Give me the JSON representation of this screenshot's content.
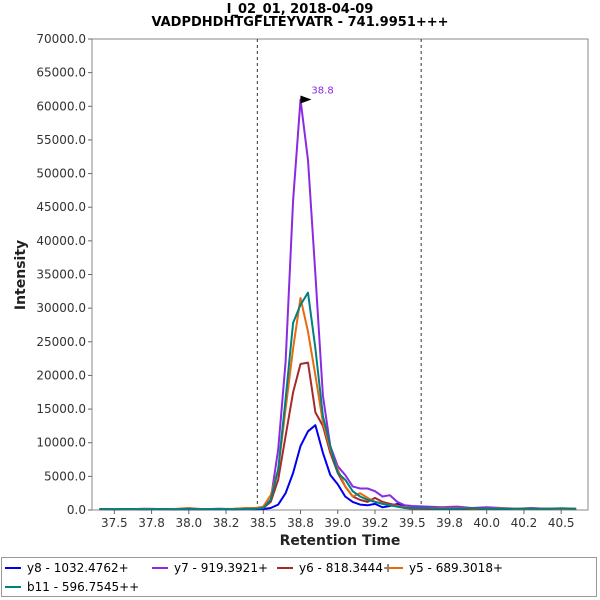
{
  "chart_data": {
    "type": "line",
    "title": "I_02_01, 2018-04-09",
    "subtitle": "VADPDHDHTGFLTEYVATR - 741.9951+++",
    "xlabel": "Retention Time",
    "ylabel": "Intensity",
    "xlim": [
      37.35,
      40.68
    ],
    "ylim": [
      0,
      70000
    ],
    "xticks": [
      "37.5",
      "37.8",
      "38.0",
      "38.2",
      "38.5",
      "38.8",
      "39.0",
      "39.2",
      "39.5",
      "39.8",
      "40.0",
      "40.2",
      "40.5"
    ],
    "xtick_values": [
      37.5,
      37.75,
      38.0,
      38.25,
      38.5,
      38.75,
      39.0,
      39.25,
      39.5,
      39.75,
      40.0,
      40.25,
      40.5
    ],
    "yticks": [
      "0.0",
      "5000.0",
      "10000.0",
      "15000.0",
      "20000.0",
      "25000.0",
      "30000.0",
      "35000.0",
      "40000.0",
      "45000.0",
      "50000.0",
      "55000.0",
      "60000.0",
      "65000.0",
      "70000.0"
    ],
    "ytick_values": [
      0,
      5000,
      10000,
      15000,
      20000,
      25000,
      30000,
      35000,
      40000,
      45000,
      50000,
      55000,
      60000,
      65000,
      70000
    ],
    "boundaries": [
      38.46,
      39.56
    ],
    "peak_annotation": {
      "x": 38.85,
      "y": 61000,
      "label": "38.8",
      "color": "#8a2be2"
    },
    "grid": false,
    "legend_position": "bottom",
    "x": [
      37.4,
      37.5,
      37.6,
      37.7,
      37.8,
      37.9,
      38.0,
      38.1,
      38.2,
      38.3,
      38.4,
      38.45,
      38.5,
      38.55,
      38.6,
      38.65,
      38.7,
      38.75,
      38.8,
      38.85,
      38.9,
      38.95,
      39.0,
      39.05,
      39.1,
      39.15,
      39.2,
      39.25,
      39.3,
      39.35,
      39.4,
      39.45,
      39.5,
      39.6,
      39.7,
      39.8,
      39.9,
      40.0,
      40.1,
      40.2,
      40.3,
      40.4,
      40.5,
      40.6
    ],
    "series": [
      {
        "name": "y8 - 1032.4762+",
        "color": "#0000ee",
        "values": [
          150,
          100,
          150,
          100,
          150,
          100,
          150,
          100,
          150,
          100,
          150,
          100,
          150,
          300,
          800,
          2500,
          5500,
          9500,
          11700,
          12600,
          8500,
          5200,
          3800,
          2000,
          1200,
          800,
          700,
          900,
          400,
          600,
          900,
          500,
          300,
          200,
          200,
          150,
          150,
          200,
          150,
          150,
          200,
          150,
          150,
          150
        ]
      },
      {
        "name": "y7 - 919.3921+",
        "color": "#8a2be2",
        "values": [
          100,
          150,
          100,
          150,
          100,
          150,
          100,
          150,
          100,
          150,
          300,
          200,
          500,
          1500,
          9000,
          22000,
          46000,
          61000,
          52000,
          35000,
          17000,
          9500,
          6500,
          5200,
          3500,
          3200,
          3200,
          2800,
          2000,
          2200,
          1200,
          700,
          600,
          500,
          400,
          500,
          300,
          400,
          300,
          200,
          300,
          200,
          200,
          200
        ]
      },
      {
        "name": "y6 - 818.3444+",
        "color": "#a52a2a",
        "values": [
          100,
          150,
          100,
          200,
          150,
          100,
          150,
          100,
          200,
          100,
          150,
          200,
          300,
          1200,
          4500,
          11000,
          17500,
          21700,
          21900,
          14500,
          12500,
          8500,
          5500,
          3500,
          2000,
          1500,
          1200,
          1800,
          1200,
          900,
          700,
          300,
          200,
          200,
          150,
          200,
          150,
          150,
          200,
          150,
          150,
          200,
          150,
          150
        ]
      },
      {
        "name": "y5 - 689.3018+",
        "color": "#e86a10",
        "values": [
          100,
          150,
          100,
          150,
          100,
          150,
          300,
          100,
          150,
          200,
          300,
          300,
          500,
          2200,
          6000,
          15000,
          24000,
          31500,
          26500,
          20000,
          13000,
          9000,
          6000,
          3500,
          2000,
          2500,
          1800,
          1200,
          1000,
          700,
          600,
          400,
          300,
          300,
          250,
          250,
          250,
          200,
          250,
          200,
          200,
          200,
          200,
          200
        ]
      },
      {
        "name": "b11 - 596.7545++",
        "color": "#008080",
        "values": [
          150,
          100,
          150,
          100,
          150,
          100,
          150,
          100,
          150,
          100,
          150,
          200,
          300,
          1500,
          6000,
          16500,
          27800,
          30500,
          32300,
          24000,
          14000,
          9500,
          5500,
          4500,
          2800,
          2000,
          1500,
          1200,
          900,
          700,
          500,
          300,
          300,
          300,
          200,
          200,
          300,
          200,
          200,
          200,
          200,
          200,
          250,
          200
        ]
      }
    ]
  }
}
